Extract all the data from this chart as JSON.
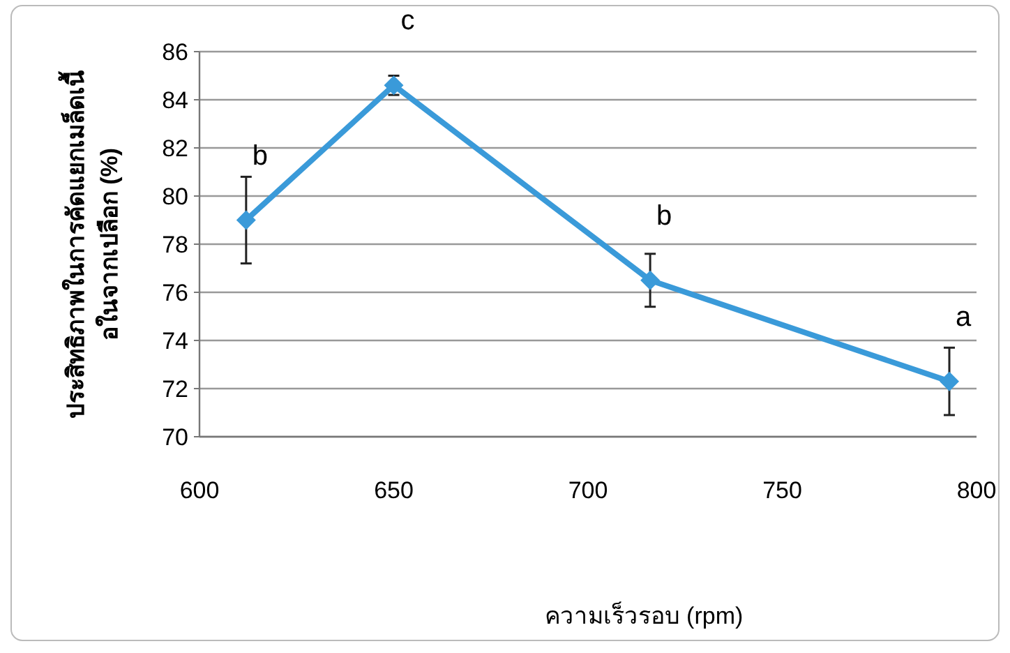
{
  "chart_data": {
    "type": "line",
    "xlabel": "ความเร็วรอบ (rpm)",
    "ylabel": "ประสิทธิภาพในการคัดแยกเมล็ดเนื้อในจากเปลือก (%)",
    "x": [
      612,
      650,
      716,
      793
    ],
    "series": [
      {
        "color": "#3a9ad9",
        "values": [
          79.0,
          84.6,
          76.5,
          72.3
        ],
        "errors": [
          1.8,
          0.4,
          1.1,
          1.4
        ]
      }
    ],
    "xlim": [
      600,
      800
    ],
    "xticks": [
      600,
      650,
      700,
      750,
      800
    ],
    "ylim": [
      70,
      86
    ],
    "yticks": [
      70,
      72,
      74,
      76,
      78,
      80,
      82,
      84,
      86
    ],
    "grid": "y",
    "marker": "diamond",
    "line_style": "solid",
    "annotations": [
      {
        "text": "b",
        "x": 612,
        "y": 79.0
      },
      {
        "text": "c",
        "x": 650,
        "y": 84.6
      },
      {
        "text": "b",
        "x": 716,
        "y": 76.5
      },
      {
        "text": "a",
        "x": 793,
        "y": 72.3
      }
    ]
  }
}
